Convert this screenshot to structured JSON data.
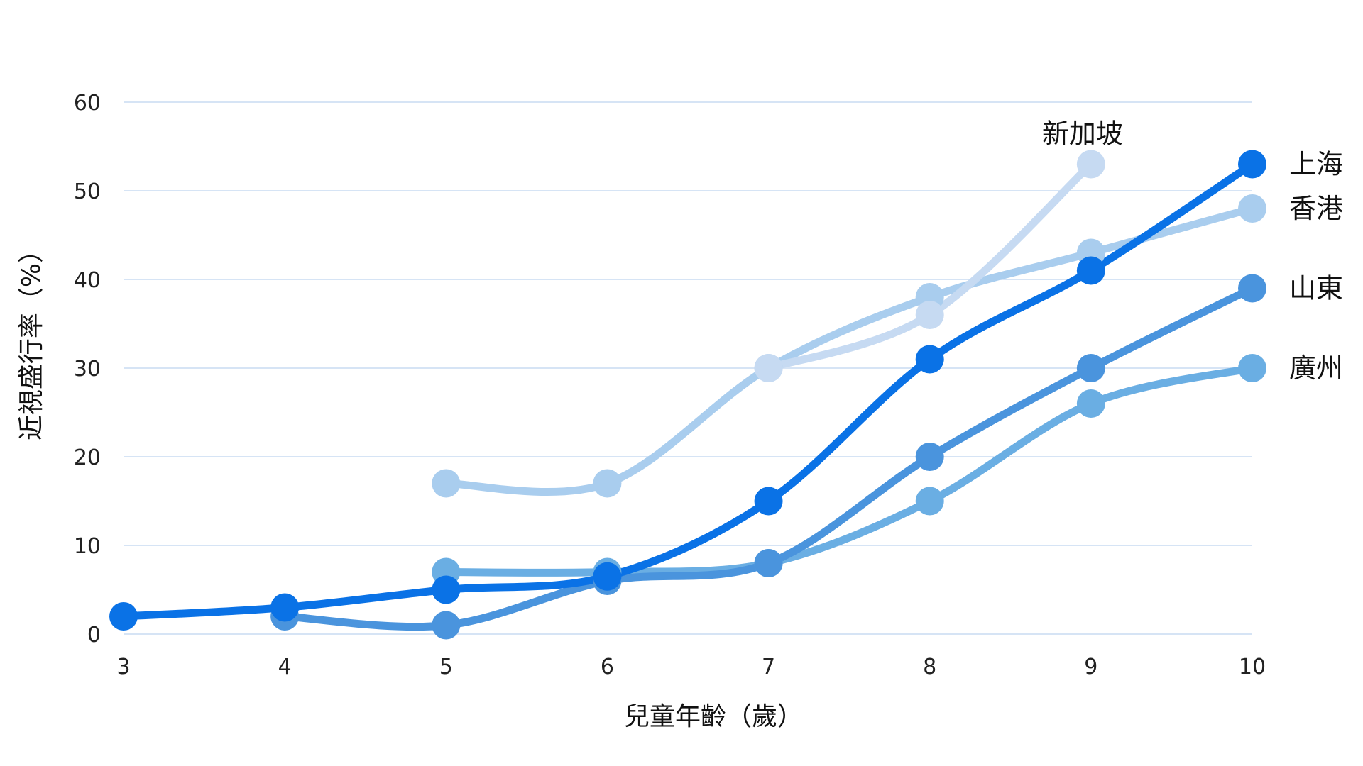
{
  "chart_data": {
    "type": "line",
    "title": "",
    "xlabel": "兒童年齡（歲）",
    "ylabel": "近視盛行率（%）",
    "x": [
      3,
      4,
      5,
      6,
      7,
      8,
      9,
      10
    ],
    "xlim": [
      3,
      10
    ],
    "ylim": [
      0,
      60
    ],
    "yticks": [
      0,
      10,
      20,
      30,
      40,
      50,
      60
    ],
    "grid": true,
    "legend": "none",
    "series": [
      {
        "name": "香港",
        "color": "#a9cdee",
        "x": [
          5,
          6,
          7,
          8,
          9,
          10
        ],
        "values": [
          17,
          17,
          30,
          38,
          43,
          48
        ]
      },
      {
        "name": "新加坡",
        "color": "#c6daf2",
        "x": [
          7,
          8,
          9
        ],
        "values": [
          30,
          36,
          53
        ]
      },
      {
        "name": "廣州",
        "color": "#6aaee3",
        "x": [
          5,
          6,
          7,
          8,
          9,
          10
        ],
        "values": [
          7,
          7,
          8,
          15,
          26,
          30
        ]
      },
      {
        "name": "山東",
        "color": "#4a94dd",
        "x": [
          4,
          5,
          6,
          7,
          8,
          9,
          10
        ],
        "values": [
          2,
          1,
          6,
          8,
          20,
          30,
          39
        ]
      },
      {
        "name": "上海",
        "color": "#0a72e6",
        "x": [
          3,
          4,
          5,
          6,
          7,
          8,
          9,
          10
        ],
        "values": [
          2,
          3,
          5,
          6.5,
          15,
          31,
          41,
          53
        ]
      }
    ]
  }
}
